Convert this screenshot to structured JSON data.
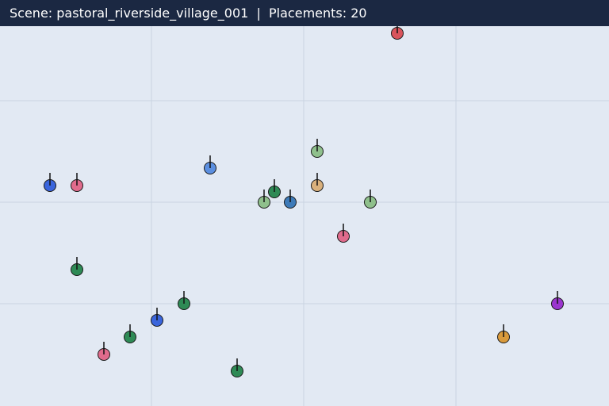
{
  "header": {
    "scene_label": "Scene: ",
    "scene_name": "pastoral_riverside_village_001",
    "separator": "  |  ",
    "placements_label": "Placements: ",
    "placements_count": "20"
  },
  "colors": {
    "background": "#e2e9f3",
    "grid": "#c9d4e1",
    "header_bg": "#1b2842",
    "header_text": "#ffffff"
  },
  "placements": [
    {
      "id": 1,
      "color": "#d9545c",
      "label": "red-marker"
    },
    {
      "id": 2,
      "color": "#8fc08c",
      "label": "light-green-marker"
    },
    {
      "id": 3,
      "color": "#5b8fe0",
      "label": "sky-blue-marker"
    },
    {
      "id": 4,
      "color": "#3a65dc",
      "label": "blue-marker"
    },
    {
      "id": 5,
      "color": "#e06b8c",
      "label": "pink-marker"
    },
    {
      "id": 6,
      "color": "#d9b07c",
      "label": "tan-marker"
    },
    {
      "id": 7,
      "color": "#2e8a55",
      "label": "green-marker"
    },
    {
      "id": 8,
      "color": "#8fc08c",
      "label": "light-green-marker"
    },
    {
      "id": 9,
      "color": "#3d7ab8",
      "label": "steel-blue-marker"
    },
    {
      "id": 10,
      "color": "#8fc08c",
      "label": "light-green-marker"
    },
    {
      "id": 11,
      "color": "#e06b8c",
      "label": "pink-marker"
    },
    {
      "id": 12,
      "color": "#2e8a55",
      "label": "green-marker"
    },
    {
      "id": 13,
      "color": "#2e8a55",
      "label": "green-marker"
    },
    {
      "id": 14,
      "color": "#3a65dc",
      "label": "blue-marker"
    },
    {
      "id": 15,
      "color": "#2e8a55",
      "label": "green-marker"
    },
    {
      "id": 16,
      "color": "#e06b8c",
      "label": "pink-marker"
    },
    {
      "id": 17,
      "color": "#2e8a55",
      "label": "green-marker"
    },
    {
      "id": 18,
      "color": "#9b35cf",
      "label": "purple-marker"
    },
    {
      "id": 19,
      "color": "#d99a3c",
      "label": "orange-marker"
    },
    {
      "id": 20,
      "color": "#2e8a55",
      "label": "green-marker"
    }
  ]
}
